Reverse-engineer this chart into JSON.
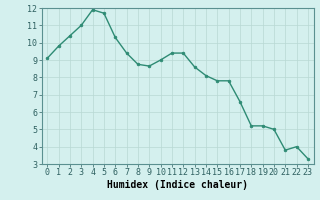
{
  "x": [
    0,
    1,
    2,
    3,
    4,
    5,
    6,
    7,
    8,
    9,
    10,
    11,
    12,
    13,
    14,
    15,
    16,
    17,
    18,
    19,
    20,
    21,
    22,
    23
  ],
  "y": [
    9.1,
    9.8,
    10.4,
    11.0,
    11.9,
    11.7,
    10.3,
    9.4,
    8.75,
    8.65,
    9.0,
    9.4,
    9.4,
    8.6,
    8.1,
    7.8,
    7.8,
    6.6,
    5.2,
    5.2,
    5.0,
    3.8,
    4.0,
    3.3
  ],
  "line_color": "#2e8b74",
  "marker": "o",
  "markersize": 2.0,
  "linewidth": 1.0,
  "bg_color": "#d4f0ee",
  "grid_color": "#b8d8d4",
  "xlabel": "Humidex (Indice chaleur)",
  "xlabel_fontsize": 7,
  "tick_fontsize": 6,
  "ylim": [
    3,
    12
  ],
  "xlim": [
    -0.5,
    23.5
  ],
  "yticks": [
    3,
    4,
    5,
    6,
    7,
    8,
    9,
    10,
    11,
    12
  ],
  "xticks": [
    0,
    1,
    2,
    3,
    4,
    5,
    6,
    7,
    8,
    9,
    10,
    11,
    12,
    13,
    14,
    15,
    16,
    17,
    18,
    19,
    20,
    21,
    22,
    23
  ]
}
